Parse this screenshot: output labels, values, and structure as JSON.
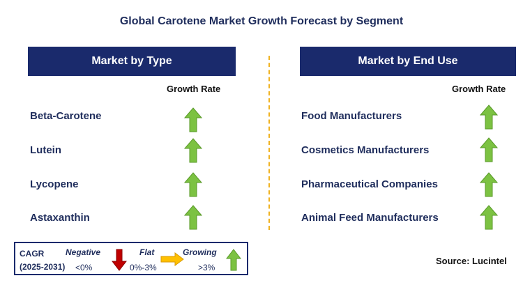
{
  "title": "Global Carotene Market Growth Forecast by Segment",
  "left_panel": {
    "header": "Market by Type",
    "growth_rate_label": "Growth Rate",
    "rows": [
      {
        "label": "Beta-Carotene",
        "trend": "growing"
      },
      {
        "label": "Lutein",
        "trend": "growing"
      },
      {
        "label": "Lycopene",
        "trend": "growing"
      },
      {
        "label": "Astaxanthin",
        "trend": "growing"
      }
    ]
  },
  "right_panel": {
    "header": "Market by End Use",
    "growth_rate_label": "Growth Rate",
    "rows": [
      {
        "label": "Food Manufacturers",
        "trend": "growing"
      },
      {
        "label": "Cosmetics Manufacturers",
        "trend": "growing"
      },
      {
        "label": "Pharmaceutical Companies",
        "trend": "growing"
      },
      {
        "label": "Animal Feed Manufacturers",
        "trend": "growing"
      }
    ]
  },
  "legend": {
    "cagr_label": "CAGR",
    "period": "(2025-2031)",
    "negative_label": "Negative",
    "negative_range": "<0%",
    "flat_label": "Flat",
    "flat_range": "0%-3%",
    "growing_label": "Growing",
    "growing_range": ">3%"
  },
  "source": "Source: Lucintel",
  "colors": {
    "header_bg": "#1a2a6c",
    "growing": "#7cc242",
    "negative": "#c00000",
    "flat": "#ffc000",
    "divider": "#f0b323"
  }
}
